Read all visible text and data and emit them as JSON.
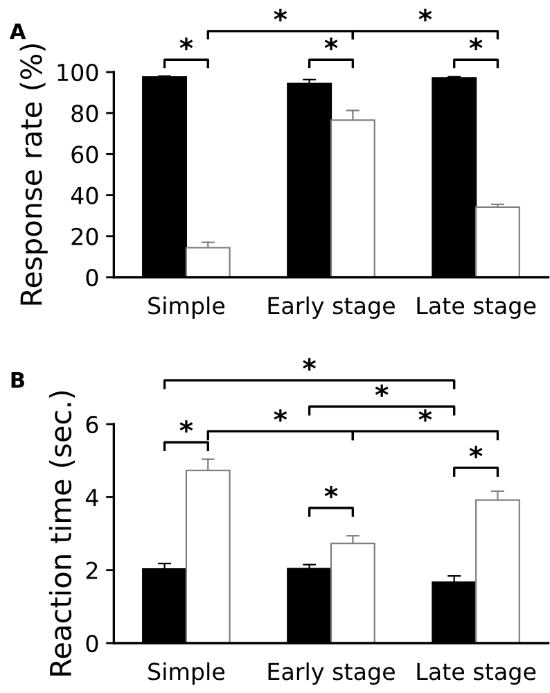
{
  "chart_data": [
    {
      "type": "bar",
      "title": "A",
      "ylabel": "Response rate (%)",
      "categories": [
        "Simple",
        "Early stage",
        "Late stage"
      ],
      "ylim": [
        0,
        100
      ],
      "yticks": [
        0,
        20,
        40,
        60,
        80,
        100
      ],
      "grid": false,
      "legend": false,
      "series": [
        {
          "color": "#000000",
          "values": [
            97.6,
            94.4,
            97.2
          ],
          "errors": [
            [
              97.6,
              98.0
            ],
            [
              94.4,
              96.3
            ],
            [
              97.2,
              97.7
            ]
          ]
        },
        {
          "color": "#ffffff",
          "values": [
            14.4,
            76.6,
            34.2
          ],
          "errors": [
            [
              14.4,
              17.0
            ],
            [
              76.6,
              81.3
            ],
            [
              34.2,
              35.5
            ]
          ]
        }
      ],
      "annotations": [
        "*",
        "*",
        "*",
        "*",
        "*"
      ]
    },
    {
      "type": "bar",
      "title": "B",
      "ylabel": "Reaction time (sec.)",
      "categories": [
        "Simple",
        "Early stage",
        "Late stage"
      ],
      "ylim": [
        0,
        6
      ],
      "yticks": [
        0,
        2,
        4,
        6
      ],
      "grid": false,
      "legend": false,
      "series": [
        {
          "color": "#000000",
          "values": [
            2.03,
            2.04,
            1.67
          ],
          "errors": [
            [
              2.03,
              2.18
            ],
            [
              2.04,
              2.15
            ],
            [
              1.67,
              1.84
            ]
          ]
        },
        {
          "color": "#ffffff",
          "values": [
            4.73,
            2.73,
            3.92
          ],
          "errors": [
            [
              4.73,
              5.04
            ],
            [
              2.73,
              2.94
            ],
            [
              3.92,
              4.16
            ]
          ]
        }
      ],
      "annotations": [
        "*",
        "*",
        "*",
        "*",
        "*",
        "*",
        "*"
      ]
    }
  ]
}
